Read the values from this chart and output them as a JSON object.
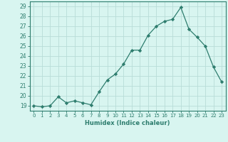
{
  "x": [
    0,
    1,
    2,
    3,
    4,
    5,
    6,
    7,
    8,
    9,
    10,
    11,
    12,
    13,
    14,
    15,
    16,
    17,
    18,
    19,
    20,
    21,
    22,
    23
  ],
  "y": [
    19.0,
    18.9,
    19.0,
    19.9,
    19.3,
    19.5,
    19.3,
    19.1,
    20.4,
    21.6,
    22.2,
    23.2,
    24.6,
    24.6,
    26.1,
    27.0,
    27.5,
    27.7,
    28.9,
    26.7,
    25.9,
    25.0,
    22.9,
    21.4
  ],
  "xlabel": "Humidex (Indice chaleur)",
  "xlim": [
    -0.5,
    23.5
  ],
  "ylim": [
    18.5,
    29.5
  ],
  "yticks": [
    19,
    20,
    21,
    22,
    23,
    24,
    25,
    26,
    27,
    28,
    29
  ],
  "xticks": [
    0,
    1,
    2,
    3,
    4,
    5,
    6,
    7,
    8,
    9,
    10,
    11,
    12,
    13,
    14,
    15,
    16,
    17,
    18,
    19,
    20,
    21,
    22,
    23
  ],
  "line_color": "#2e7d6e",
  "marker_color": "#2e7d6e",
  "bg_color": "#d8f5f0",
  "grid_color": "#b8ddd8",
  "axes_color": "#2e7d6e",
  "tick_label_color": "#2e7d6e",
  "xlabel_color": "#2e7d6e"
}
